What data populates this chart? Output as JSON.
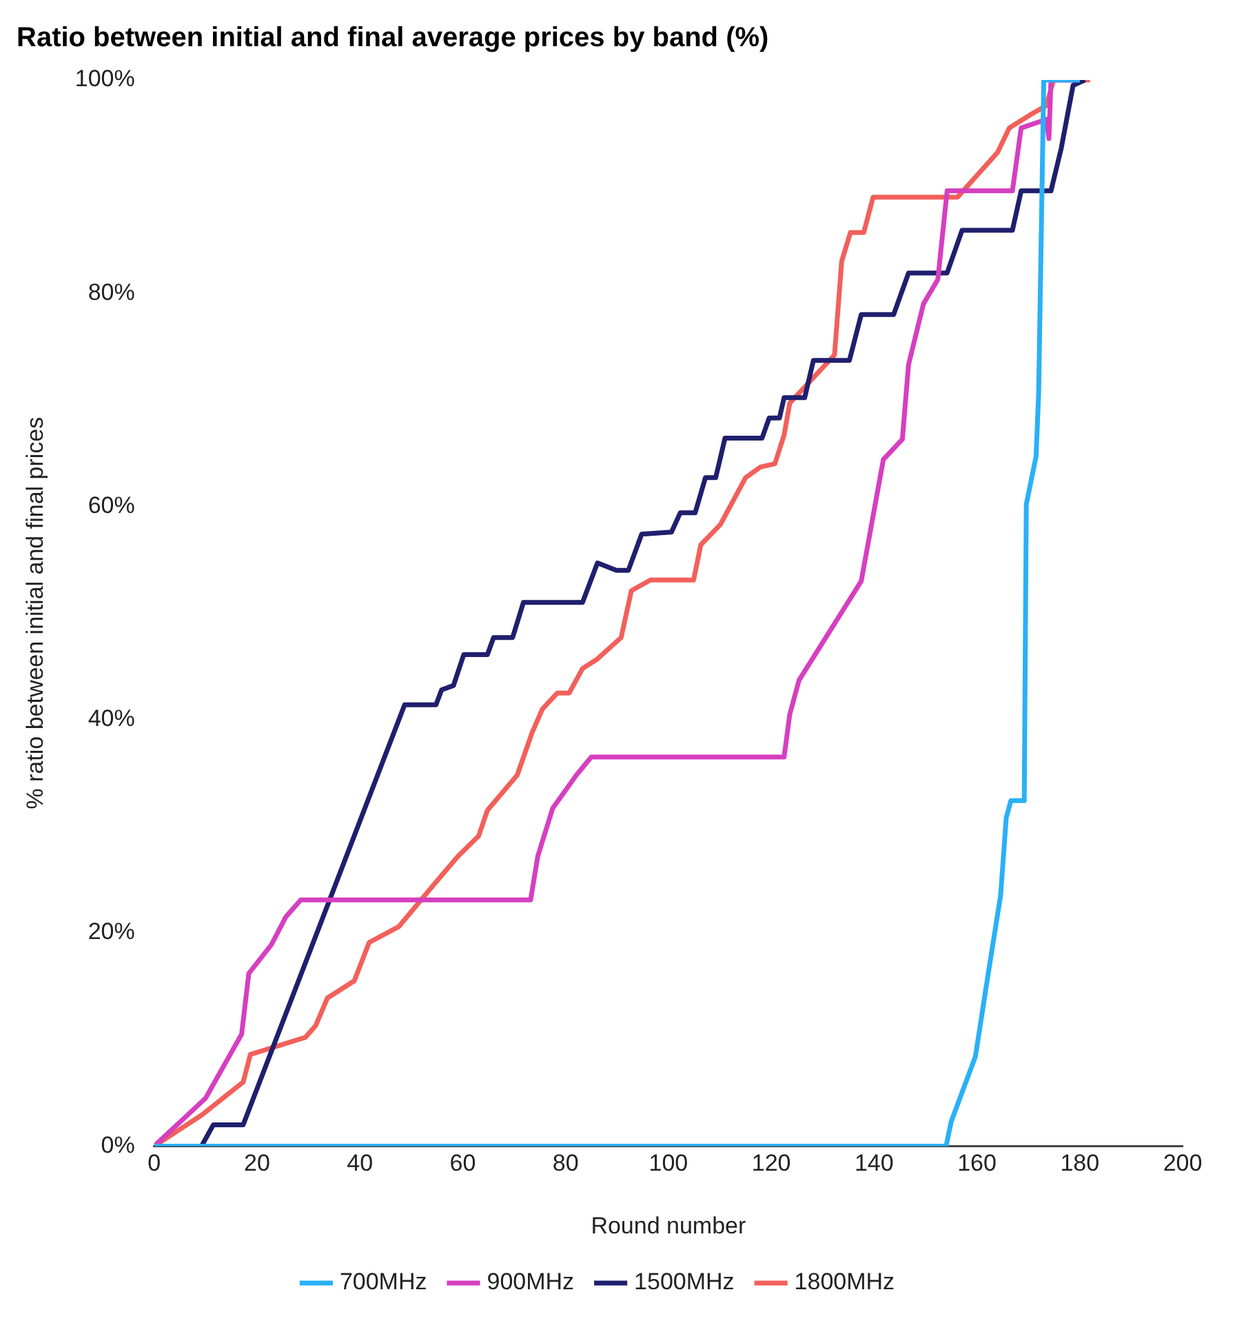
{
  "chart_data": {
    "type": "line",
    "title": "Ratio between initial and final average prices by band (%)",
    "xlabel": "Round number",
    "ylabel": "% ratio between initial and final prices",
    "xlim": [
      0,
      200
    ],
    "xticks": [
      0,
      20,
      40,
      60,
      80,
      100,
      120,
      140,
      160,
      180,
      200
    ],
    "ylim": [
      0,
      100
    ],
    "yticks": [
      {
        "value": 0,
        "label": "0%"
      },
      {
        "value": 20,
        "label": "20%"
      },
      {
        "value": 40,
        "label": "40%"
      },
      {
        "value": 60,
        "label": "60%"
      },
      {
        "value": 80,
        "label": "80%"
      },
      {
        "value": 100,
        "label": "100%"
      }
    ],
    "legend": "bottom",
    "marker": "none",
    "line_style": "solid",
    "series": [
      {
        "name": "700MHz",
        "color": "#2ab0f7",
        "x": [
          0,
          154,
          155,
          159.7,
          162.2,
          164.6,
          165.7,
          166.6,
          169.2,
          169.6,
          171.5,
          172,
          173,
          180
        ],
        "values": [
          0,
          0,
          2.3,
          8.4,
          16.2,
          23.5,
          30.8,
          32.4,
          32.4,
          60.2,
          64.7,
          70.6,
          100,
          100
        ]
      },
      {
        "name": "900MHz",
        "color": "#d63fc0",
        "x": [
          0,
          10,
          17,
          18.4,
          22.8,
          25.6,
          28.5,
          73.2,
          74.6,
          77.5,
          82.1,
          85,
          122.5,
          123.6,
          125.4,
          137.5,
          141.8,
          145.5,
          146.7,
          149.6,
          152.4,
          154.2,
          166.9,
          168.6,
          173.5,
          174,
          174.4,
          180
        ],
        "values": [
          0,
          4.5,
          10.5,
          16.2,
          18.9,
          21.5,
          23.1,
          23.1,
          27.2,
          31.7,
          34.8,
          36.5,
          36.5,
          40.5,
          43.7,
          53,
          64.4,
          66.3,
          73.3,
          79,
          81.3,
          89.6,
          89.6,
          95.5,
          96.3,
          94.5,
          100,
          100
        ]
      },
      {
        "name": "1500MHz",
        "color": "#1f1f6e",
        "x": [
          0,
          9.2,
          11.5,
          17.3,
          48.7,
          54.8,
          55.9,
          58.2,
          60.2,
          64.8,
          66,
          69.7,
          71.8,
          83.3,
          86.2,
          89.9,
          92.2,
          94.8,
          100.6,
          102.3,
          105.2,
          107.2,
          109.2,
          111,
          118.2,
          119.6,
          121.6,
          122.5,
          126.5,
          128.2,
          135.2,
          137.5,
          143.8,
          146.7,
          154.2,
          157.1,
          166.9,
          168.6,
          174.4,
          176.4,
          178.7,
          181
        ],
        "values": [
          0,
          0,
          2,
          2,
          41.4,
          41.4,
          42.8,
          43.2,
          46.1,
          46.1,
          47.7,
          47.7,
          51,
          51,
          54.7,
          54,
          54,
          57.4,
          57.6,
          59.4,
          59.4,
          62.7,
          62.7,
          66.4,
          66.4,
          68.3,
          68.3,
          70.2,
          70.2,
          73.7,
          73.7,
          78,
          78,
          81.9,
          81.9,
          85.9,
          85.9,
          89.6,
          89.6,
          93.6,
          99.5,
          100
        ]
      },
      {
        "name": "1800MHz",
        "color": "#f2605a",
        "x": [
          0,
          9.2,
          17.3,
          18.7,
          29.4,
          31.4,
          33.7,
          38.9,
          41.8,
          47.6,
          54.5,
          59.1,
          63.1,
          64.8,
          70.6,
          73.5,
          75.5,
          78.4,
          80.7,
          83.3,
          86.2,
          90.8,
          92.8,
          96.5,
          104.9,
          106.3,
          110.1,
          115,
          117.9,
          120.7,
          122.5,
          123.6,
          132.3,
          133.7,
          135.4,
          138,
          139.8,
          156.2,
          164,
          166.3,
          170.6,
          173.5,
          174.9,
          182
        ],
        "values": [
          0,
          2.9,
          6,
          8.6,
          10.2,
          11.3,
          13.9,
          15.5,
          19.1,
          20.6,
          24.6,
          27.2,
          29.1,
          31.5,
          34.8,
          38.8,
          41,
          42.5,
          42.5,
          44.8,
          45.7,
          47.7,
          52.1,
          53.1,
          53.1,
          56.4,
          58.3,
          62.7,
          63.7,
          64,
          66.7,
          69.7,
          74.2,
          83,
          85.7,
          85.7,
          89,
          89,
          93.2,
          95.5,
          96.8,
          97.6,
          100,
          100
        ]
      }
    ]
  }
}
